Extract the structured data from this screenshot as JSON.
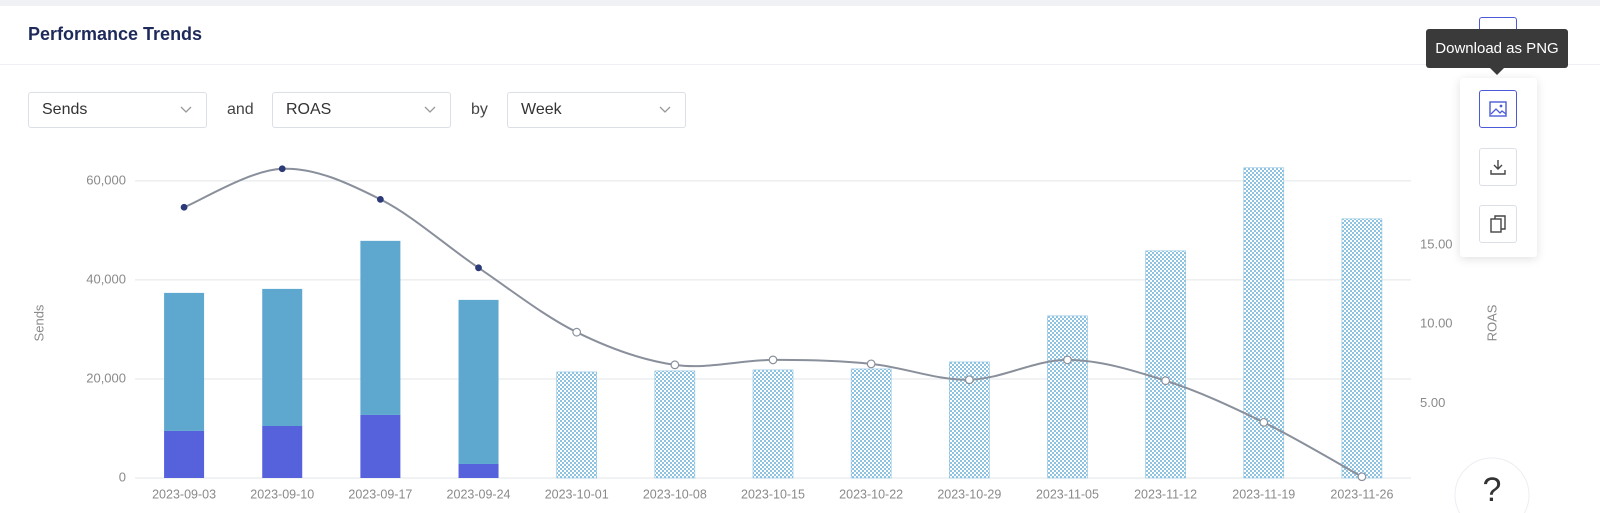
{
  "header": {
    "title": "Performance Trends"
  },
  "controls": {
    "metric_1": "Sends",
    "joiner_1": "and",
    "metric_2": "ROAS",
    "joiner_2": "by",
    "period": "Week"
  },
  "tooltip": "Download as PNG",
  "help": "?",
  "chart_data": {
    "type": "bar",
    "categories": [
      "2023-09-03",
      "2023-09-10",
      "2023-09-17",
      "2023-09-24",
      "2023-10-01",
      "2023-10-08",
      "2023-10-15",
      "2023-10-22",
      "2023-10-29",
      "2023-11-05",
      "2023-11-12",
      "2023-11-19",
      "2023-11-26"
    ],
    "y_label": "Sends",
    "y2_label": "ROAS",
    "ylim": [
      0,
      64000
    ],
    "yticks": [
      0,
      {
        "value": 20000,
        "label": "20,000"
      },
      {
        "value": 40000,
        "label": "40,000"
      },
      {
        "value": 60000,
        "label": "60,000"
      }
    ],
    "y2lim": [
      0.3,
      20.3
    ],
    "y2ticks": [
      {
        "value": 5,
        "label": "5.00"
      },
      {
        "value": 10,
        "label": "10.00"
      },
      {
        "value": 15,
        "label": "15.00"
      }
    ],
    "grid": true,
    "series": [
      {
        "type": "bar",
        "color": "#5661dc",
        "values": [
          9500,
          10500,
          12730,
          2830,
          null,
          null,
          null,
          null,
          null,
          null,
          null,
          null,
          null
        ]
      },
      {
        "type": "bar",
        "color": "#5ea8d0",
        "values": [
          27870,
          27680,
          35150,
          33130,
          null,
          null,
          null,
          null,
          null,
          null,
          null,
          null,
          null
        ]
      },
      {
        "type": "bar",
        "color": "#8dc2e0",
        "pattern": "checker",
        "values": [
          null,
          null,
          null,
          null,
          21410,
          21620,
          21820,
          22020,
          23430,
          32730,
          45860,
          62630,
          52320
        ]
      },
      {
        "type": "line",
        "axis": "y2",
        "color": "#8a909b",
        "values": [
          17.38,
          19.81,
          17.88,
          13.56,
          9.5,
          7.44,
          7.75,
          7.5,
          6.5,
          7.75,
          6.44,
          3.81,
          0.38
        ]
      }
    ]
  }
}
